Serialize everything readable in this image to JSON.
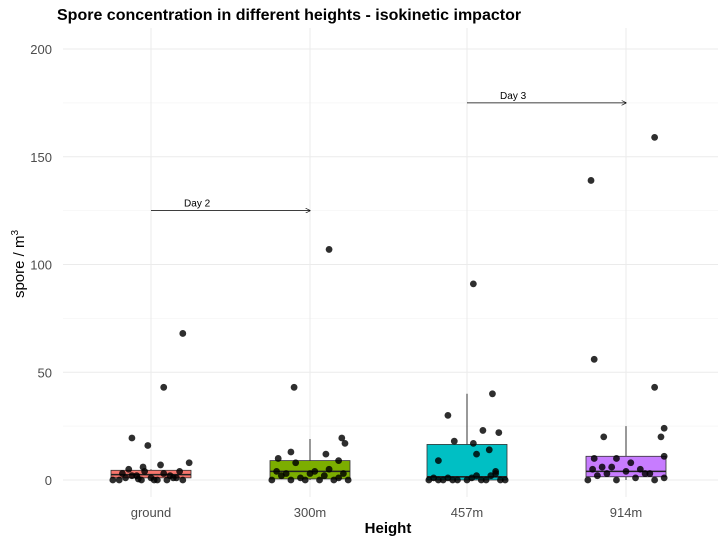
{
  "chart_data": {
    "type": "box",
    "title": "Spore concentration in different heights - isokinetic impactor",
    "xlabel": "Height",
    "ylabel_main": "spore / m",
    "ylabel_sup": "3",
    "ylim": [
      0,
      200
    ],
    "yticks": [
      0,
      50,
      100,
      150,
      200
    ],
    "grid": true,
    "legend": "none",
    "categories": [
      "ground",
      "300m",
      "457m",
      "914m"
    ],
    "colors": [
      "#F8766D",
      "#7CAE00",
      "#00BFC4",
      "#C77CFF"
    ],
    "boxes": [
      {
        "category": "ground",
        "q1": 1,
        "median": 2.5,
        "q3": 4.5,
        "whisker_low": 0,
        "whisker_high": 5
      },
      {
        "category": "300m",
        "q1": 0.5,
        "median": 4,
        "q3": 9,
        "whisker_low": 0,
        "whisker_high": 19
      },
      {
        "category": "457m",
        "q1": 0,
        "median": 1.5,
        "q3": 16.5,
        "whisker_low": 0,
        "whisker_high": 40
      },
      {
        "category": "914m",
        "q1": 1.5,
        "median": 4,
        "q3": 11,
        "whisker_low": 0,
        "whisker_high": 25
      }
    ],
    "points": [
      {
        "category": "ground",
        "jitter": -0.2,
        "value": 0
      },
      {
        "category": "ground",
        "jitter": -0.16,
        "value": 1
      },
      {
        "category": "ground",
        "jitter": -0.12,
        "value": 2
      },
      {
        "category": "ground",
        "jitter": -0.08,
        "value": 0.5
      },
      {
        "category": "ground",
        "jitter": -0.04,
        "value": 4
      },
      {
        "category": "ground",
        "jitter": 0.0,
        "value": 1
      },
      {
        "category": "ground",
        "jitter": 0.04,
        "value": 0
      },
      {
        "category": "ground",
        "jitter": 0.08,
        "value": 3
      },
      {
        "category": "ground",
        "jitter": 0.12,
        "value": 2
      },
      {
        "category": "ground",
        "jitter": 0.16,
        "value": 1
      },
      {
        "category": "ground",
        "jitter": 0.2,
        "value": 0
      },
      {
        "category": "ground",
        "jitter": -0.14,
        "value": 5
      },
      {
        "category": "ground",
        "jitter": -0.05,
        "value": 6
      },
      {
        "category": "ground",
        "jitter": 0.06,
        "value": 7
      },
      {
        "category": "ground",
        "jitter": 0.24,
        "value": 8
      },
      {
        "category": "ground",
        "jitter": -0.18,
        "value": 3
      },
      {
        "category": "ground",
        "jitter": -0.09,
        "value": 2
      },
      {
        "category": "ground",
        "jitter": 0.1,
        "value": 0
      },
      {
        "category": "ground",
        "jitter": 0.18,
        "value": 4
      },
      {
        "category": "ground",
        "jitter": -0.06,
        "value": 0
      },
      {
        "category": "ground",
        "jitter": 0.02,
        "value": 0
      },
      {
        "category": "ground",
        "jitter": -0.24,
        "value": 0
      },
      {
        "category": "ground",
        "jitter": 0.14,
        "value": 1
      },
      {
        "category": "ground",
        "jitter": -0.02,
        "value": 16
      },
      {
        "category": "ground",
        "jitter": -0.12,
        "value": 19.5
      },
      {
        "category": "ground",
        "jitter": 0.08,
        "value": 43
      },
      {
        "category": "ground",
        "jitter": 0.2,
        "value": 68
      },
      {
        "category": "300m",
        "jitter": -0.24,
        "value": 0
      },
      {
        "category": "300m",
        "jitter": -0.18,
        "value": 2
      },
      {
        "category": "300m",
        "jitter": -0.12,
        "value": 0
      },
      {
        "category": "300m",
        "jitter": -0.06,
        "value": 1
      },
      {
        "category": "300m",
        "jitter": 0.0,
        "value": 3
      },
      {
        "category": "300m",
        "jitter": 0.06,
        "value": 0
      },
      {
        "category": "300m",
        "jitter": 0.12,
        "value": 5
      },
      {
        "category": "300m",
        "jitter": 0.18,
        "value": 1
      },
      {
        "category": "300m",
        "jitter": 0.24,
        "value": 0
      },
      {
        "category": "300m",
        "jitter": -0.21,
        "value": 4
      },
      {
        "category": "300m",
        "jitter": -0.15,
        "value": 3
      },
      {
        "category": "300m",
        "jitter": -0.09,
        "value": 8
      },
      {
        "category": "300m",
        "jitter": -0.03,
        "value": 0
      },
      {
        "category": "300m",
        "jitter": 0.03,
        "value": 4
      },
      {
        "category": "300m",
        "jitter": 0.09,
        "value": 2
      },
      {
        "category": "300m",
        "jitter": 0.15,
        "value": 0
      },
      {
        "category": "300m",
        "jitter": 0.21,
        "value": 3
      },
      {
        "category": "300m",
        "jitter": -0.2,
        "value": 10
      },
      {
        "category": "300m",
        "jitter": -0.12,
        "value": 13
      },
      {
        "category": "300m",
        "jitter": 0.1,
        "value": 12
      },
      {
        "category": "300m",
        "jitter": 0.18,
        "value": 9
      },
      {
        "category": "300m",
        "jitter": 0.22,
        "value": 17
      },
      {
        "category": "300m",
        "jitter": 0.2,
        "value": 19.5
      },
      {
        "category": "300m",
        "jitter": -0.1,
        "value": 43
      },
      {
        "category": "300m",
        "jitter": 0.12,
        "value": 107
      },
      {
        "category": "457m",
        "jitter": -0.24,
        "value": 0
      },
      {
        "category": "457m",
        "jitter": -0.18,
        "value": 0
      },
      {
        "category": "457m",
        "jitter": -0.12,
        "value": 1
      },
      {
        "category": "457m",
        "jitter": -0.06,
        "value": 0
      },
      {
        "category": "457m",
        "jitter": 0.0,
        "value": 0
      },
      {
        "category": "457m",
        "jitter": 0.06,
        "value": 2
      },
      {
        "category": "457m",
        "jitter": 0.12,
        "value": 0
      },
      {
        "category": "457m",
        "jitter": 0.18,
        "value": 3
      },
      {
        "category": "457m",
        "jitter": 0.24,
        "value": 0
      },
      {
        "category": "457m",
        "jitter": -0.21,
        "value": 1
      },
      {
        "category": "457m",
        "jitter": -0.15,
        "value": 0
      },
      {
        "category": "457m",
        "jitter": -0.09,
        "value": 0
      },
      {
        "category": "457m",
        "jitter": 0.03,
        "value": 1
      },
      {
        "category": "457m",
        "jitter": 0.09,
        "value": 0
      },
      {
        "category": "457m",
        "jitter": 0.15,
        "value": 2
      },
      {
        "category": "457m",
        "jitter": 0.21,
        "value": 0
      },
      {
        "category": "457m",
        "jitter": -0.18,
        "value": 9
      },
      {
        "category": "457m",
        "jitter": 0.06,
        "value": 12
      },
      {
        "category": "457m",
        "jitter": 0.14,
        "value": 14
      },
      {
        "category": "457m",
        "jitter": -0.08,
        "value": 18
      },
      {
        "category": "457m",
        "jitter": 0.2,
        "value": 22
      },
      {
        "category": "457m",
        "jitter": 0.1,
        "value": 23
      },
      {
        "category": "457m",
        "jitter": 0.04,
        "value": 17
      },
      {
        "category": "457m",
        "jitter": 0.18,
        "value": 4
      },
      {
        "category": "457m",
        "jitter": -0.12,
        "value": 30
      },
      {
        "category": "457m",
        "jitter": 0.16,
        "value": 40
      },
      {
        "category": "457m",
        "jitter": 0.04,
        "value": 91
      },
      {
        "category": "914m",
        "jitter": -0.24,
        "value": 0
      },
      {
        "category": "914m",
        "jitter": -0.18,
        "value": 2
      },
      {
        "category": "914m",
        "jitter": -0.12,
        "value": 3
      },
      {
        "category": "914m",
        "jitter": -0.06,
        "value": 0
      },
      {
        "category": "914m",
        "jitter": 0.0,
        "value": 4
      },
      {
        "category": "914m",
        "jitter": 0.06,
        "value": 1
      },
      {
        "category": "914m",
        "jitter": 0.12,
        "value": 3
      },
      {
        "category": "914m",
        "jitter": 0.18,
        "value": 0
      },
      {
        "category": "914m",
        "jitter": 0.24,
        "value": 1
      },
      {
        "category": "914m",
        "jitter": -0.21,
        "value": 5
      },
      {
        "category": "914m",
        "jitter": -0.15,
        "value": 6
      },
      {
        "category": "914m",
        "jitter": -0.09,
        "value": 6
      },
      {
        "category": "914m",
        "jitter": 0.03,
        "value": 8
      },
      {
        "category": "914m",
        "jitter": 0.09,
        "value": 5
      },
      {
        "category": "914m",
        "jitter": 0.15,
        "value": 3
      },
      {
        "category": "914m",
        "jitter": -0.2,
        "value": 10
      },
      {
        "category": "914m",
        "jitter": -0.06,
        "value": 10
      },
      {
        "category": "914m",
        "jitter": 0.24,
        "value": 11
      },
      {
        "category": "914m",
        "jitter": 0.22,
        "value": 20
      },
      {
        "category": "914m",
        "jitter": -0.14,
        "value": 20
      },
      {
        "category": "914m",
        "jitter": 0.24,
        "value": 24
      },
      {
        "category": "914m",
        "jitter": 0.18,
        "value": 43
      },
      {
        "category": "914m",
        "jitter": -0.2,
        "value": 56
      },
      {
        "category": "914m",
        "jitter": -0.22,
        "value": 139
      },
      {
        "category": "914m",
        "jitter": 0.18,
        "value": 159
      }
    ],
    "annotations": [
      {
        "label": "Day 2",
        "x_start": "ground",
        "x_end": "300m",
        "y": 125
      },
      {
        "label": "Day 3",
        "x_start": "457m",
        "x_end": "914m",
        "y": 175
      }
    ]
  }
}
